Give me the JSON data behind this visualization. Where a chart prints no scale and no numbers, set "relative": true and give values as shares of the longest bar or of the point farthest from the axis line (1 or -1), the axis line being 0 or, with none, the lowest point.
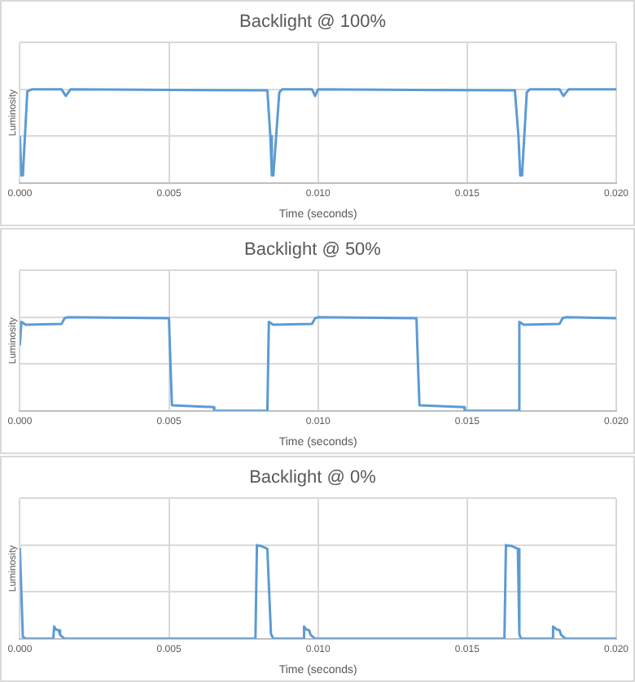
{
  "chart_data": [
    {
      "type": "line",
      "title": "Backlight @ 100%",
      "xlabel": "Time (seconds)",
      "ylabel": "Luminosity",
      "relative": true,
      "grid": true,
      "legend": false,
      "marker": "none",
      "line_style": "solid",
      "xlim": [
        0,
        0.02
      ],
      "xticks": [
        {
          "value": 0,
          "label": "0.000"
        },
        {
          "value": 0.005,
          "label": "0.005"
        },
        {
          "value": 0.01,
          "label": "0.010"
        },
        {
          "value": 0.015,
          "label": "0.015"
        },
        {
          "value": 0.02,
          "label": "0.020"
        }
      ],
      "x": [
        0,
        5e-05,
        0.0001,
        0.00025,
        0.0004,
        0.0014,
        0.00154,
        0.0017,
        0.0083,
        0.0084,
        0.00845,
        0.0085,
        0.0087,
        0.0088,
        0.0098,
        0.0099,
        0.01,
        0.0166,
        0.01672,
        0.01678,
        0.01684,
        0.017,
        0.0171,
        0.0181,
        0.01823,
        0.0184,
        0.02
      ],
      "series": [
        {
          "color": "#5b9bd5",
          "values": [
            0.5,
            0.08,
            0.08,
            0.98,
            1,
            1,
            0.93,
            1,
            0.99,
            0.5,
            0.08,
            0.08,
            0.97,
            1,
            1,
            0.93,
            1,
            0.99,
            0.5,
            0.08,
            0.08,
            0.97,
            1,
            1,
            0.93,
            1,
            1
          ]
        }
      ]
    },
    {
      "type": "line",
      "title": "Backlight @ 50%",
      "xlabel": "Time (seconds)",
      "ylabel": "Luminosity",
      "relative": true,
      "grid": true,
      "legend": false,
      "marker": "none",
      "line_style": "solid",
      "xlim": [
        0,
        0.02
      ],
      "xticks": [
        {
          "value": 0,
          "label": "0.000"
        },
        {
          "value": 0.005,
          "label": "0.005"
        },
        {
          "value": 0.01,
          "label": "0.010"
        },
        {
          "value": 0.015,
          "label": "0.015"
        },
        {
          "value": 0.02,
          "label": "0.020"
        }
      ],
      "x": [
        0,
        5e-05,
        0.0002,
        0.0014,
        0.0015,
        0.0016,
        0.005,
        0.00505,
        0.0051,
        0.0065,
        0.00652,
        0.0083,
        0.00835,
        0.0085,
        0.0098,
        0.0099,
        0.01,
        0.0133,
        0.01335,
        0.0134,
        0.0149,
        0.01492,
        0.0167,
        0.01675,
        0.0169,
        0.0181,
        0.0182,
        0.0183,
        0.02
      ],
      "series": [
        {
          "color": "#5b9bd5",
          "values": [
            0.7,
            0.95,
            0.92,
            0.93,
            0.99,
            1,
            0.99,
            0.5,
            0.06,
            0.04,
            0,
            0,
            0.95,
            0.92,
            0.93,
            0.99,
            1,
            0.99,
            0.5,
            0.06,
            0.04,
            0,
            0,
            0.95,
            0.92,
            0.93,
            0.99,
            1,
            0.99
          ]
        }
      ]
    },
    {
      "type": "line",
      "title": "Backlight @ 0%",
      "xlabel": "Time (seconds)",
      "ylabel": "Luminosity",
      "relative": true,
      "grid": true,
      "legend": false,
      "marker": "none",
      "line_style": "solid",
      "xlim": [
        0,
        0.02
      ],
      "xticks": [
        {
          "value": 0,
          "label": "0.000"
        },
        {
          "value": 0.005,
          "label": "0.005"
        },
        {
          "value": 0.01,
          "label": "0.010"
        },
        {
          "value": 0.015,
          "label": "0.015"
        },
        {
          "value": 0.02,
          "label": "0.020"
        }
      ],
      "x": [
        0,
        0.0001,
        0.0002,
        0.00112,
        0.00115,
        0.0012,
        0.0013,
        0.00135,
        0.0015,
        0.0079,
        0.00795,
        0.0081,
        0.0083,
        0.00842,
        0.0085,
        0.0095,
        0.00953,
        0.0096,
        0.0097,
        0.00975,
        0.0099,
        0.01625,
        0.0163,
        0.0165,
        0.0167,
        0.01675,
        0.0168,
        0.01785,
        0.01788,
        0.018,
        0.0181,
        0.01815,
        0.0183,
        0.02
      ],
      "series": [
        {
          "color": "#5b9bd5",
          "values": [
            0.97,
            0.02,
            0,
            0,
            0.13,
            0.1,
            0.09,
            0.04,
            0,
            0,
            1,
            0.99,
            0.96,
            0.05,
            0,
            0,
            0.13,
            0.1,
            0.09,
            0.04,
            0,
            0,
            1,
            0.99,
            0.96,
            0.05,
            0,
            0,
            0.13,
            0.1,
            0.09,
            0.04,
            0,
            0
          ]
        }
      ]
    }
  ]
}
